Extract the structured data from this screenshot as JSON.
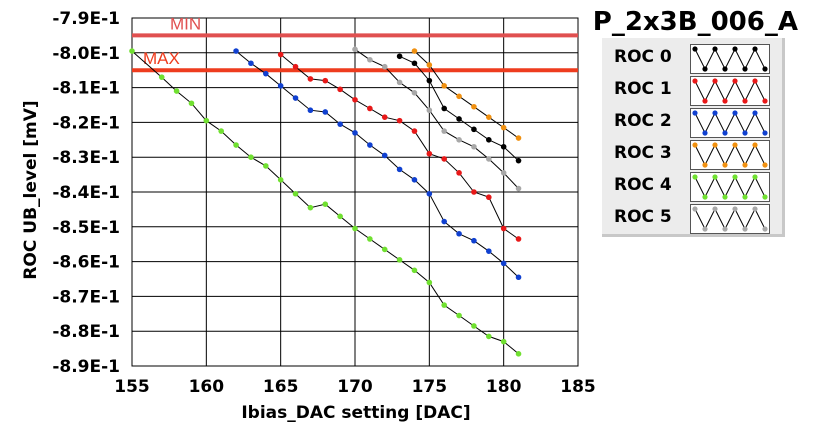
{
  "chart_data": {
    "type": "line",
    "title": "P_2x3B_006_A",
    "xlabel": "Ibias_DAC setting [DAC]",
    "ylabel": "ROC UB_level [mV]",
    "xlim": [
      155,
      185
    ],
    "ylim": [
      -0.89,
      -0.79
    ],
    "x_ticks": [
      155,
      160,
      165,
      170,
      175,
      180,
      185
    ],
    "x_tick_labels": [
      "155",
      "160",
      "165",
      "170",
      "175",
      "180",
      "185"
    ],
    "y_ticks": [
      -0.79,
      -0.8,
      -0.81,
      -0.82,
      -0.83,
      -0.84,
      -0.85,
      -0.86,
      -0.87,
      -0.88,
      -0.89
    ],
    "y_tick_labels": [
      "-7.9E-1",
      "-8.0E-1",
      "-8.1E-1",
      "-8.2E-1",
      "-8.3E-1",
      "-8.4E-1",
      "-8.5E-1",
      "-8.6E-1",
      "-8.7E-1",
      "-8.8E-1",
      "-8.9E-1"
    ],
    "grid": true,
    "legend_position": "right",
    "limits": [
      {
        "label": "MIN",
        "y": -0.795,
        "color": "#e05050"
      },
      {
        "label": "MAX",
        "y": -0.805,
        "color": "#ee3c1e"
      }
    ],
    "series": [
      {
        "name": "ROC 0",
        "color": "#000000",
        "x": [
          173,
          174,
          175,
          176,
          177,
          178,
          179,
          180,
          181
        ],
        "y": [
          -0.801,
          -0.803,
          -0.808,
          -0.816,
          -0.819,
          -0.822,
          -0.825,
          -0.827,
          -0.831
        ]
      },
      {
        "name": "ROC 1",
        "color": "#e81818",
        "x": [
          165,
          166,
          167,
          168,
          169,
          170,
          171,
          172,
          173,
          174,
          175,
          176,
          177,
          178,
          179,
          180,
          181
        ],
        "y": [
          -0.8005,
          -0.804,
          -0.8075,
          -0.808,
          -0.8105,
          -0.8135,
          -0.816,
          -0.8185,
          -0.8195,
          -0.8225,
          -0.829,
          -0.8305,
          -0.8345,
          -0.84,
          -0.8415,
          -0.8505,
          -0.8535
        ]
      },
      {
        "name": "ROC 2",
        "color": "#1040d0",
        "x": [
          162,
          163,
          164,
          165,
          166,
          167,
          168,
          169,
          170,
          171,
          172,
          173,
          174,
          175,
          176,
          177,
          178,
          179,
          180,
          181
        ],
        "y": [
          -0.7995,
          -0.803,
          -0.806,
          -0.8095,
          -0.813,
          -0.8165,
          -0.817,
          -0.8205,
          -0.823,
          -0.8265,
          -0.8295,
          -0.8335,
          -0.8365,
          -0.8405,
          -0.8485,
          -0.852,
          -0.854,
          -0.857,
          -0.8605,
          -0.8645
        ]
      },
      {
        "name": "ROC 3",
        "color": "#f09010",
        "x": [
          174,
          175,
          176,
          177,
          178,
          179,
          180,
          181
        ],
        "y": [
          -0.7995,
          -0.8035,
          -0.8095,
          -0.8125,
          -0.8155,
          -0.8185,
          -0.8215,
          -0.8245
        ]
      },
      {
        "name": "ROC 4",
        "color": "#70e030",
        "x": [
          155,
          157,
          158,
          159,
          160,
          161,
          162,
          163,
          164,
          165,
          166,
          167,
          168,
          169,
          170,
          171,
          172,
          173,
          174,
          175,
          176,
          177,
          178,
          179,
          180,
          181
        ],
        "y": [
          -0.7995,
          -0.807,
          -0.811,
          -0.8145,
          -0.8195,
          -0.8225,
          -0.8265,
          -0.83,
          -0.8325,
          -0.8365,
          -0.8405,
          -0.8445,
          -0.8435,
          -0.847,
          -0.8505,
          -0.8535,
          -0.8565,
          -0.8595,
          -0.8625,
          -0.866,
          -0.8725,
          -0.8755,
          -0.8785,
          -0.8815,
          -0.883,
          -0.8865
        ]
      },
      {
        "name": "ROC 5",
        "color": "#a8a8a8",
        "x": [
          170,
          171,
          172,
          173,
          174,
          175,
          176,
          177,
          178,
          179,
          180,
          181
        ],
        "y": [
          -0.799,
          -0.802,
          -0.804,
          -0.8085,
          -0.8115,
          -0.8165,
          -0.8225,
          -0.825,
          -0.827,
          -0.8305,
          -0.8345,
          -0.839
        ]
      }
    ]
  }
}
